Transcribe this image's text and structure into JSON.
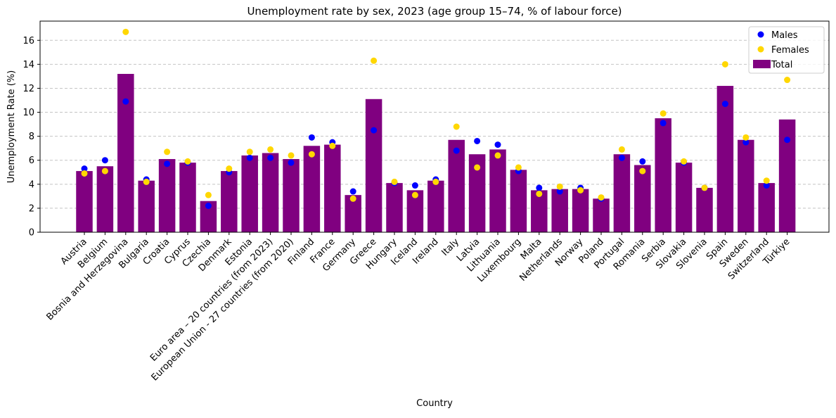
{
  "chart_data": {
    "type": "bar",
    "title": "Unemployment rate by sex, 2023 (age group 15–74, % of labour force)",
    "xlabel": "Country",
    "ylabel": "Unemployment Rate (%)",
    "ylim": [
      0,
      17.6
    ],
    "yticks": [
      0,
      2,
      4,
      6,
      8,
      10,
      12,
      14,
      16
    ],
    "grid": "y dashed",
    "legend_position": "top-right",
    "categories": [
      "Austria",
      "Belgium",
      "Bosnia and Herzegovina",
      "Bulgaria",
      "Croatia",
      "Cyprus",
      "Czechia",
      "Denmark",
      "Estonia",
      "Euro area – 20 countries (from 2023)",
      "European Union - 27 countries (from 2020)",
      "Finland",
      "France",
      "Germany",
      "Greece",
      "Hungary",
      "Iceland",
      "Ireland",
      "Italy",
      "Latvia",
      "Lithuania",
      "Luxembourg",
      "Malta",
      "Netherlands",
      "Norway",
      "Poland",
      "Portugal",
      "Romania",
      "Serbia",
      "Slovakia",
      "Slovenia",
      "Spain",
      "Sweden",
      "Switzerland",
      "Türkiye"
    ],
    "series": [
      {
        "name": "Total",
        "kind": "bar",
        "color": "#800080",
        "values": [
          5.1,
          5.5,
          13.2,
          4.3,
          6.1,
          5.8,
          2.6,
          5.1,
          6.4,
          6.6,
          6.1,
          7.2,
          7.3,
          3.1,
          11.1,
          4.1,
          3.5,
          4.3,
          7.7,
          6.5,
          6.9,
          5.2,
          3.5,
          3.6,
          3.6,
          2.8,
          6.5,
          5.6,
          9.5,
          5.8,
          3.7,
          12.2,
          7.7,
          4.1,
          9.4
        ]
      },
      {
        "name": "Males",
        "kind": "scatter",
        "color": "#0000ff",
        "values": [
          5.3,
          6.0,
          10.9,
          4.4,
          5.7,
          5.8,
          2.2,
          5.0,
          6.2,
          6.2,
          5.8,
          7.9,
          7.5,
          3.4,
          8.5,
          4.1,
          3.9,
          4.4,
          6.8,
          7.6,
          7.3,
          5.1,
          3.7,
          3.4,
          3.7,
          2.8,
          6.2,
          5.9,
          9.1,
          5.8,
          3.7,
          10.7,
          7.5,
          3.9,
          7.7
        ]
      },
      {
        "name": "Females",
        "kind": "scatter",
        "color": "#ffd700",
        "values": [
          4.9,
          5.1,
          16.7,
          4.2,
          6.7,
          5.9,
          3.1,
          5.3,
          6.7,
          6.9,
          6.4,
          6.5,
          7.2,
          2.8,
          14.3,
          4.2,
          3.1,
          4.2,
          8.8,
          5.4,
          6.4,
          5.4,
          3.2,
          3.8,
          3.5,
          2.9,
          6.9,
          5.1,
          9.9,
          5.9,
          3.7,
          14.0,
          7.9,
          4.3,
          12.7
        ]
      }
    ]
  }
}
